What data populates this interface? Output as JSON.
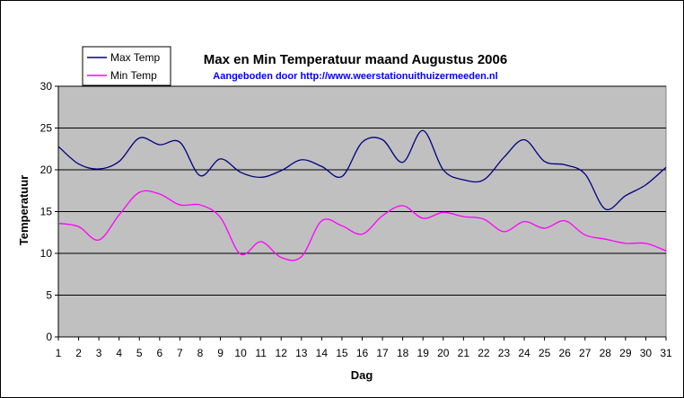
{
  "chart_data": {
    "type": "line",
    "title": "Max en Min Temperatuur maand Augustus 2006",
    "subtitle": "Aangeboden door http://www.weerstationuithuizermeeden.nl",
    "xlabel": "Dag",
    "ylabel": "Temperatuur",
    "x": [
      1,
      2,
      3,
      4,
      5,
      6,
      7,
      8,
      9,
      10,
      11,
      12,
      13,
      14,
      15,
      16,
      17,
      18,
      19,
      20,
      21,
      22,
      23,
      24,
      25,
      26,
      27,
      28,
      29,
      30,
      31
    ],
    "ylim": [
      0,
      30
    ],
    "yticks": [
      0,
      5,
      10,
      15,
      20,
      25,
      30
    ],
    "grid": true,
    "legend_position": "top-left",
    "background_color": "#c0c0c0",
    "series": [
      {
        "name": "Max Temp",
        "color": "#000080",
        "values": [
          22.8,
          20.7,
          20.1,
          21.0,
          23.8,
          23.0,
          23.3,
          19.3,
          21.3,
          19.7,
          19.1,
          19.9,
          21.2,
          20.4,
          19.2,
          23.3,
          23.6,
          20.9,
          24.7,
          20.0,
          18.8,
          18.8,
          21.5,
          23.6,
          21.0,
          20.6,
          19.5,
          15.3,
          16.9,
          18.2,
          20.3
        ]
      },
      {
        "name": "Min Temp",
        "color": "#ff00ff",
        "values": [
          13.6,
          13.2,
          11.6,
          14.6,
          17.3,
          17.1,
          15.8,
          15.8,
          14.3,
          9.9,
          11.4,
          9.5,
          9.6,
          13.9,
          13.3,
          12.3,
          14.5,
          15.7,
          14.2,
          14.9,
          14.4,
          14.1,
          12.6,
          13.8,
          13.0,
          13.9,
          12.2,
          11.7,
          11.2,
          11.2,
          10.3
        ]
      }
    ]
  }
}
